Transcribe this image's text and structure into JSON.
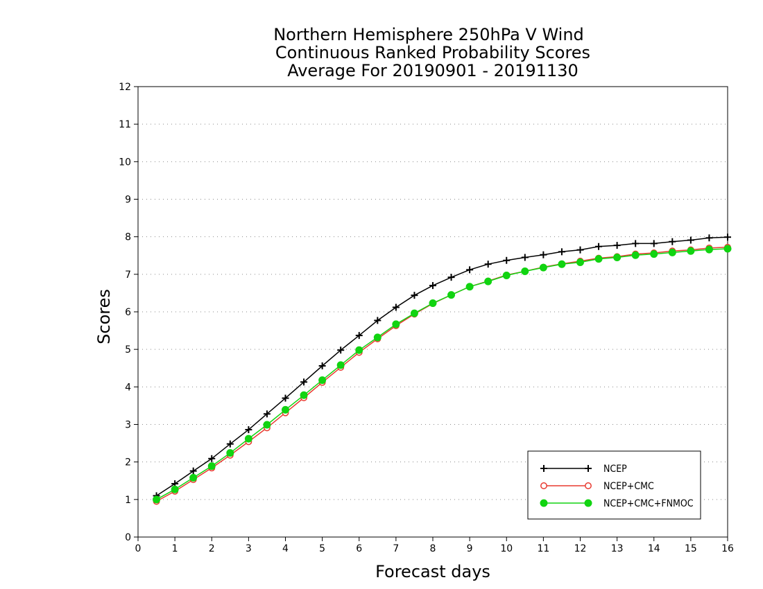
{
  "chart_data": {
    "type": "line",
    "title": [
      "Northern Hemisphere 250hPa V Wind",
      "Continuous Ranked Probability Scores",
      "Average For 20190901 - 20191130"
    ],
    "xlabel": "Forecast days",
    "ylabel": "Scores",
    "xlim": [
      0,
      16
    ],
    "ylim": [
      0,
      12
    ],
    "xticks": [
      0,
      1,
      2,
      3,
      4,
      5,
      6,
      7,
      8,
      9,
      10,
      11,
      12,
      13,
      14,
      15,
      16
    ],
    "yticks": [
      0,
      1,
      2,
      3,
      4,
      5,
      6,
      7,
      8,
      9,
      10,
      11,
      12
    ],
    "grid": "horizontal-dotted",
    "legend_position": "bottom-right",
    "x": [
      0.5,
      1,
      1.5,
      2,
      2.5,
      3,
      3.5,
      4,
      4.5,
      5,
      5.5,
      6,
      6.5,
      7,
      7.5,
      8,
      8.5,
      9,
      9.5,
      10,
      10.5,
      11,
      11.5,
      12,
      12.5,
      13,
      13.5,
      14,
      14.5,
      15,
      15.5,
      16
    ],
    "series": [
      {
        "name": "NCEP",
        "color": "#000000",
        "marker": "plus",
        "values": [
          1.1,
          1.42,
          1.76,
          2.09,
          2.48,
          2.86,
          3.28,
          3.7,
          4.13,
          4.56,
          4.98,
          5.37,
          5.77,
          6.12,
          6.44,
          6.7,
          6.92,
          7.12,
          7.27,
          7.37,
          7.45,
          7.52,
          7.6,
          7.65,
          7.74,
          7.77,
          7.82,
          7.82,
          7.87,
          7.91,
          7.97,
          7.99
        ]
      },
      {
        "name": "NCEP+CMC",
        "color": "#e8392f",
        "marker": "open-circle",
        "values": [
          0.95,
          1.22,
          1.53,
          1.84,
          2.18,
          2.54,
          2.91,
          3.31,
          3.71,
          4.12,
          4.52,
          4.92,
          5.28,
          5.63,
          5.94,
          6.22,
          6.45,
          6.67,
          6.82,
          6.98,
          7.08,
          7.19,
          7.28,
          7.35,
          7.43,
          7.47,
          7.54,
          7.57,
          7.62,
          7.65,
          7.7,
          7.72
        ]
      },
      {
        "name": "NCEP+CMC+FNMOC",
        "color": "#11d411",
        "marker": "filled-circle",
        "values": [
          1.0,
          1.27,
          1.58,
          1.89,
          2.24,
          2.62,
          2.99,
          3.39,
          3.78,
          4.18,
          4.58,
          4.98,
          5.32,
          5.67,
          5.96,
          6.23,
          6.45,
          6.67,
          6.81,
          6.97,
          7.08,
          7.18,
          7.27,
          7.32,
          7.41,
          7.45,
          7.51,
          7.54,
          7.58,
          7.62,
          7.66,
          7.68
        ]
      }
    ]
  }
}
